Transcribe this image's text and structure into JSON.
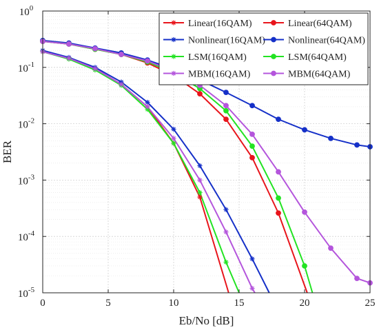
{
  "chart_data": {
    "type": "line",
    "title": "",
    "xlabel": "Eb/No [dB]",
    "ylabel": "BER",
    "xlim": [
      0,
      25
    ],
    "ylim": [
      1e-05,
      1
    ],
    "yscale": "log",
    "grid": true,
    "legend_position": "top-right",
    "x_ticks": [
      0,
      5,
      10,
      15,
      20,
      25
    ],
    "y_tick_exponents": [
      0,
      -1,
      -2,
      -3,
      -4,
      -5
    ],
    "y_tick_base": "10",
    "series": [
      {
        "name": "Linear(16QAM)",
        "color": "#e8141b",
        "marker": "star",
        "x": [
          0,
          2,
          4,
          6,
          8,
          10,
          12,
          14.2
        ],
        "y": [
          0.19,
          0.145,
          0.095,
          0.05,
          0.02,
          0.0045,
          0.0005,
          1e-05
        ]
      },
      {
        "name": "Nonlinear(16QAM)",
        "color": "#1530c8",
        "marker": "star",
        "x": [
          0,
          2,
          4,
          6,
          8,
          10,
          12,
          14,
          16,
          17.3
        ],
        "y": [
          0.2,
          0.15,
          0.1,
          0.055,
          0.024,
          0.008,
          0.0018,
          0.0003,
          4e-05,
          1e-05
        ]
      },
      {
        "name": "LSM(16QAM)",
        "color": "#22e322",
        "marker": "star",
        "x": [
          0,
          2,
          4,
          6,
          8,
          10,
          12,
          14,
          15
        ],
        "y": [
          0.19,
          0.14,
          0.09,
          0.048,
          0.018,
          0.0045,
          0.0006,
          3.5e-05,
          1e-05
        ]
      },
      {
        "name": "MBM(16QAM)",
        "color": "#b455dc",
        "marker": "star",
        "x": [
          0,
          2,
          4,
          6,
          8,
          10,
          12,
          14,
          16,
          16.2
        ],
        "y": [
          0.19,
          0.145,
          0.095,
          0.05,
          0.02,
          0.0055,
          0.001,
          0.00012,
          1.2e-05,
          1e-05
        ]
      },
      {
        "name": "Linear(64QAM)",
        "color": "#e8141b",
        "marker": "circle",
        "x": [
          0,
          2,
          4,
          6,
          8,
          10,
          12,
          14,
          16,
          18,
          20.2
        ],
        "y": [
          0.29,
          0.26,
          0.21,
          0.17,
          0.12,
          0.072,
          0.034,
          0.012,
          0.0025,
          0.00026,
          1e-05
        ]
      },
      {
        "name": "Nonlinear(64QAM)",
        "color": "#1530c8",
        "marker": "circle",
        "x": [
          0,
          2,
          4,
          6,
          8,
          10,
          12,
          14,
          16,
          18,
          20,
          22,
          24,
          25
        ],
        "y": [
          0.3,
          0.27,
          0.22,
          0.18,
          0.135,
          0.093,
          0.06,
          0.036,
          0.021,
          0.012,
          0.0078,
          0.0055,
          0.0042,
          0.0039
        ]
      },
      {
        "name": "LSM(64QAM)",
        "color": "#22e322",
        "marker": "circle",
        "x": [
          0,
          2,
          4,
          6,
          8,
          10,
          12,
          14,
          16,
          18,
          20,
          20.6
        ],
        "y": [
          0.29,
          0.26,
          0.21,
          0.17,
          0.125,
          0.08,
          0.042,
          0.017,
          0.004,
          0.00048,
          3e-05,
          1e-05
        ]
      },
      {
        "name": "MBM(64QAM)",
        "color": "#b455dc",
        "marker": "circle",
        "x": [
          0,
          2,
          4,
          6,
          8,
          10,
          12,
          14,
          16,
          18,
          20,
          22,
          24,
          25
        ],
        "y": [
          0.29,
          0.26,
          0.215,
          0.17,
          0.13,
          0.085,
          0.048,
          0.021,
          0.0065,
          0.0014,
          0.00027,
          6.2e-05,
          1.8e-05,
          1.5e-05
        ]
      }
    ]
  }
}
